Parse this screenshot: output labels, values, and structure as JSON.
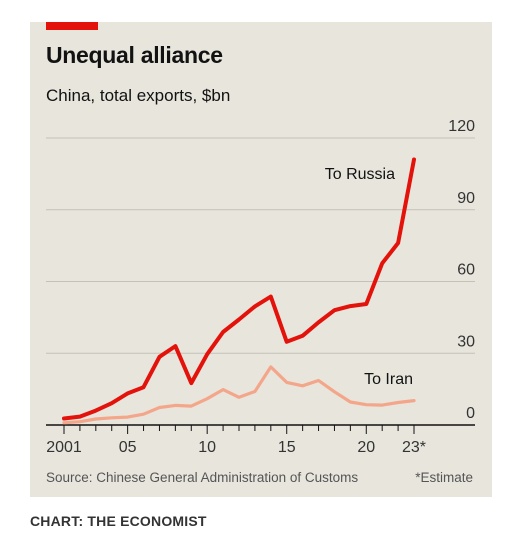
{
  "header": {
    "title": "Unequal alliance",
    "subtitle": "China, total exports, $bn"
  },
  "footer": {
    "source": "Source: Chinese General Administration of Customs",
    "note": "*Estimate",
    "credit": "CHART: THE ECONOMIST"
  },
  "colors": {
    "russia": "#e3120b",
    "iran": "#f4a68a",
    "accent": "#e3120b",
    "background": "#e8e5dd"
  },
  "chart_data": {
    "type": "line",
    "title": "Unequal alliance",
    "subtitle": "China, total exports, $bn",
    "x": [
      2001,
      2002,
      2003,
      2004,
      2005,
      2006,
      2007,
      2008,
      2009,
      2010,
      2011,
      2012,
      2013,
      2014,
      2015,
      2016,
      2017,
      2018,
      2019,
      2020,
      2021,
      2022,
      2023
    ],
    "x_tick_labels": [
      {
        "x": 2001,
        "label": "2001"
      },
      {
        "x": 2005,
        "label": "05"
      },
      {
        "x": 2010,
        "label": "10"
      },
      {
        "x": 2015,
        "label": "15"
      },
      {
        "x": 2020,
        "label": "20"
      },
      {
        "x": 2023,
        "label": "23*"
      }
    ],
    "y_ticks": [
      0,
      30,
      60,
      90,
      120
    ],
    "ylim": [
      0,
      120
    ],
    "xlim": [
      2001,
      2023
    ],
    "grid": "horizontal",
    "y_axis_side": "right",
    "series": [
      {
        "name": "To Russia",
        "color": "#e3120b",
        "values": [
          2.7,
          3.5,
          6.0,
          9.1,
          13.2,
          15.8,
          28.5,
          33.0,
          17.5,
          29.6,
          38.9,
          44.1,
          49.6,
          53.7,
          34.8,
          37.3,
          42.9,
          48.0,
          49.7,
          50.6,
          67.6,
          76.1,
          111.0
        ]
      },
      {
        "name": "To Iran",
        "color": "#f4a68a",
        "values": [
          0.9,
          1.4,
          2.5,
          3.0,
          3.3,
          4.5,
          7.3,
          8.2,
          7.9,
          11.0,
          14.8,
          11.6,
          14.0,
          24.3,
          17.8,
          16.4,
          18.6,
          13.9,
          9.6,
          8.5,
          8.3,
          9.4,
          10.2
        ]
      }
    ]
  }
}
